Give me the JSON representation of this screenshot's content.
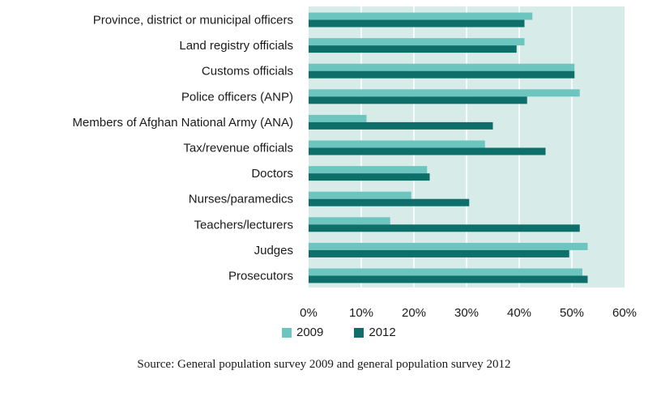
{
  "chart_data": {
    "type": "bar",
    "orientation": "horizontal",
    "categories": [
      "Province, district or municipal officers",
      "Land registry officials",
      "Customs officials",
      "Police officers (ANP)",
      "Members of Afghan National Army (ANA)",
      "Tax/revenue officials",
      "Doctors",
      "Nurses/paramedics",
      "Teachers/lecturers",
      "Judges",
      "Prosecutors"
    ],
    "series": [
      {
        "name": "2009",
        "color": "#6cc6bf",
        "values": [
          42.5,
          41,
          50.5,
          51.5,
          11,
          33.5,
          22.5,
          19.5,
          15.5,
          53,
          52
        ]
      },
      {
        "name": "2012",
        "color": "#0e6e6a",
        "values": [
          41,
          39.5,
          50.5,
          41.5,
          35,
          45,
          23,
          30.5,
          51.5,
          49.5,
          53
        ]
      }
    ],
    "xlim": [
      0,
      60
    ],
    "x_ticks": [
      "0%",
      "10%",
      "20%",
      "30%",
      "40%",
      "50%",
      "60%"
    ],
    "grid": true,
    "plot_background": "#d7ece9",
    "legend_position": "bottom-left"
  },
  "legend": {
    "s1": "2009",
    "s2": "2012"
  },
  "source": "Source: General population survey 2009 and general population survey 2012"
}
